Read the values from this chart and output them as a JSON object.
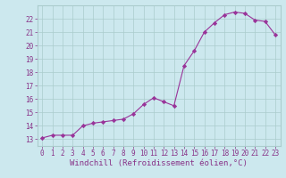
{
  "x": [
    0,
    1,
    2,
    3,
    4,
    5,
    6,
    7,
    8,
    9,
    10,
    11,
    12,
    13,
    14,
    15,
    16,
    17,
    18,
    19,
    20,
    21,
    22,
    23
  ],
  "y": [
    13.1,
    13.3,
    13.3,
    13.3,
    14.0,
    14.2,
    14.3,
    14.4,
    14.5,
    14.9,
    15.6,
    16.1,
    15.8,
    15.5,
    18.5,
    19.6,
    21.0,
    21.7,
    22.3,
    22.5,
    22.4,
    21.9,
    21.8,
    20.8
  ],
  "line_color": "#993399",
  "marker": "D",
  "marker_size": 2.2,
  "xlim": [
    -0.5,
    23.5
  ],
  "ylim": [
    12.5,
    23.0
  ],
  "xticks": [
    0,
    1,
    2,
    3,
    4,
    5,
    6,
    7,
    8,
    9,
    10,
    11,
    12,
    13,
    14,
    15,
    16,
    17,
    18,
    19,
    20,
    21,
    22,
    23
  ],
  "yticks": [
    13,
    14,
    15,
    16,
    17,
    18,
    19,
    20,
    21,
    22
  ],
  "xlabel": "Windchill (Refroidissement éolien,°C)",
  "background_color": "#cce8ee",
  "grid_color": "#aacccc",
  "text_color": "#883388",
  "tick_fontsize": 5.5,
  "xlabel_fontsize": 6.5
}
